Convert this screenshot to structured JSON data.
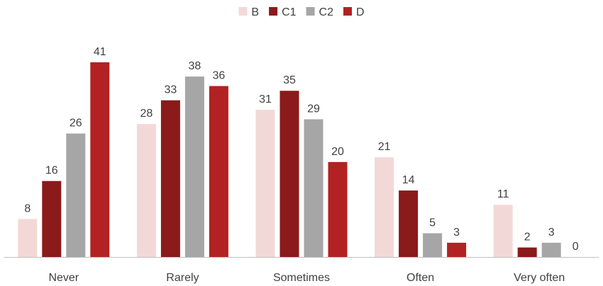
{
  "chart_data": {
    "type": "bar",
    "title": "",
    "xlabel": "",
    "ylabel": "",
    "categories": [
      "Never",
      "Rarely",
      "Sometimes",
      "Often",
      "Very often"
    ],
    "series": [
      {
        "name": "B",
        "color": "#f2d9d7",
        "values": [
          8,
          28,
          31,
          21,
          11
        ]
      },
      {
        "name": "C1",
        "color": "#8b1a1a",
        "values": [
          16,
          33,
          35,
          14,
          2
        ]
      },
      {
        "name": "C2",
        "color": "#a6a6a6",
        "values": [
          26,
          38,
          29,
          5,
          3
        ]
      },
      {
        "name": "D",
        "color": "#b22222",
        "values": [
          41,
          36,
          20,
          3,
          0
        ]
      }
    ],
    "ylim": [
      0,
      41
    ],
    "grid": false,
    "legend": "top-center",
    "data_labels": true
  }
}
